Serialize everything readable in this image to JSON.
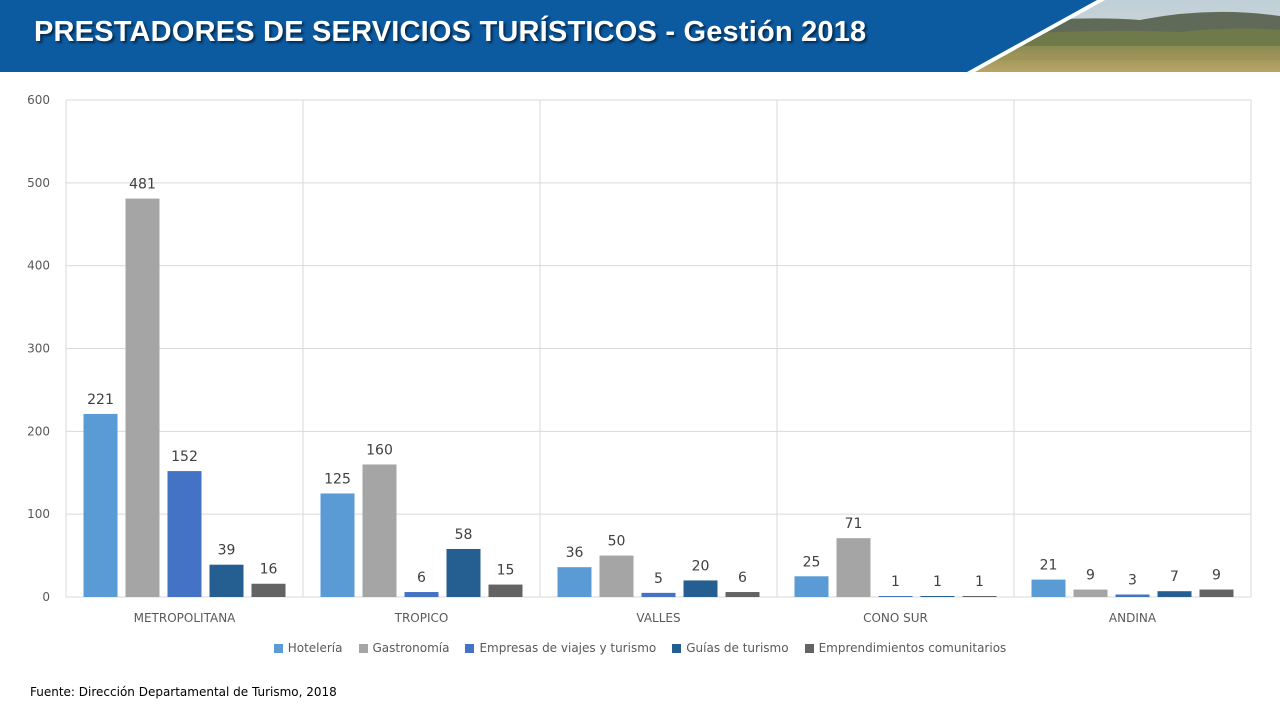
{
  "header": {
    "title": "PRESTADORES DE SERVICIOS TURÍSTICOS  - Gestión 2018"
  },
  "colors": {
    "banner": "#0c5aa0",
    "gridline": "#d9d9d9"
  },
  "chart_data": {
    "type": "bar",
    "title": "",
    "xlabel": "",
    "ylabel": "",
    "ylim": [
      0,
      600
    ],
    "yticks": [
      "0",
      "100",
      "200",
      "300",
      "400",
      "500",
      "600"
    ],
    "grid": true,
    "legend_position": "bottom",
    "categories": [
      "METROPOLITANA",
      "TROPICO",
      "VALLES",
      "CONO SUR",
      "ANDINA"
    ],
    "series": [
      {
        "name": "Hotelería",
        "color": "#5b9bd5",
        "values": [
          221,
          125,
          36,
          25,
          21
        ]
      },
      {
        "name": "Gastronomía",
        "color": "#a5a5a5",
        "values": [
          481,
          160,
          50,
          71,
          9
        ]
      },
      {
        "name": "Empresas de viajes y turismo",
        "color": "#4472c4",
        "values": [
          152,
          6,
          5,
          1,
          3
        ]
      },
      {
        "name": "Guías de turismo",
        "color": "#255e91",
        "values": [
          39,
          58,
          20,
          1,
          7
        ]
      },
      {
        "name": "Emprendimientos comunitarios",
        "color": "#636363",
        "values": [
          16,
          15,
          6,
          1,
          9
        ]
      }
    ]
  },
  "footer": {
    "source": "Fuente: Dirección Departamental de Turismo, 2018"
  }
}
